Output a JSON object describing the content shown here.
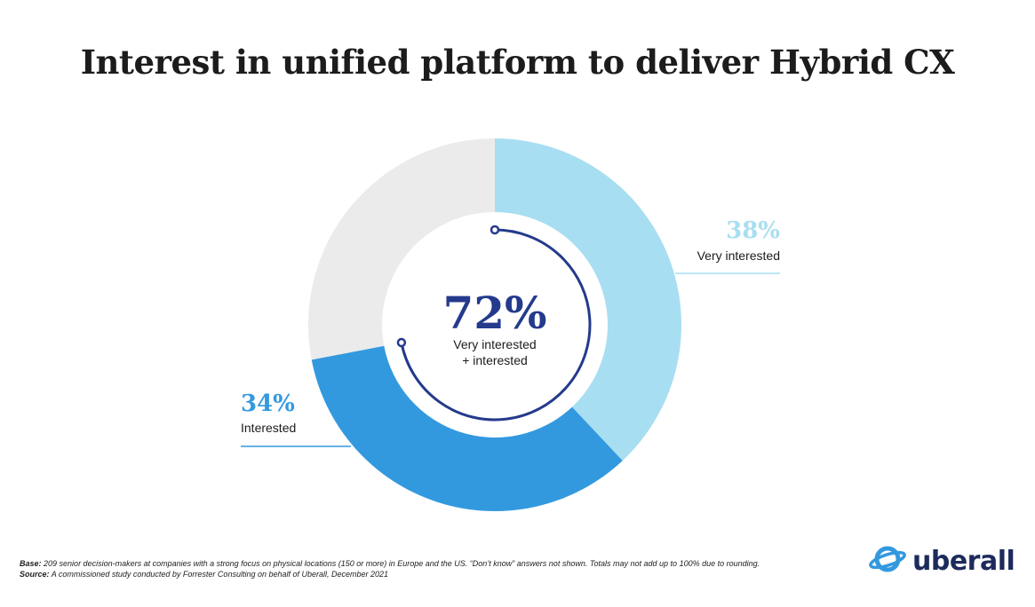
{
  "title": "Interest in unified platform to deliver Hybrid CX",
  "chart_data": {
    "type": "pie",
    "title": "Interest in unified platform to deliver Hybrid CX",
    "slices": [
      {
        "label": "Very interested",
        "value": 38,
        "display": "38%",
        "color": "#a8def1"
      },
      {
        "label": "Interested",
        "value": 34,
        "display": "34%",
        "color": "#3399df"
      },
      {
        "label": "",
        "value": 28,
        "display": "",
        "color": "#ebebeb"
      }
    ],
    "center": {
      "value": "72%",
      "line1": "Very interested",
      "line2": "+ interested",
      "value_color": "#243a8c"
    },
    "colors": {
      "ring_arc": "#243a8c",
      "label_38": "#a8def1",
      "label_34": "#3399df"
    }
  },
  "footer": {
    "base_label": "Base:",
    "base_text": "209 senior decision-makers at companies with a strong focus on physical locations (150 or more) in Europe and the US. “Don’t know” answers not shown. Totals may not add up to 100% due to rounding.",
    "source_label": "Source:",
    "source_text": "A commissioned study conducted by Forrester Consulting on behalf of Uberall, December 2021"
  },
  "logo": {
    "text": "uberall",
    "icon": "planet-ring-icon",
    "color": "#1d2b5c",
    "accent": "#3399df"
  }
}
